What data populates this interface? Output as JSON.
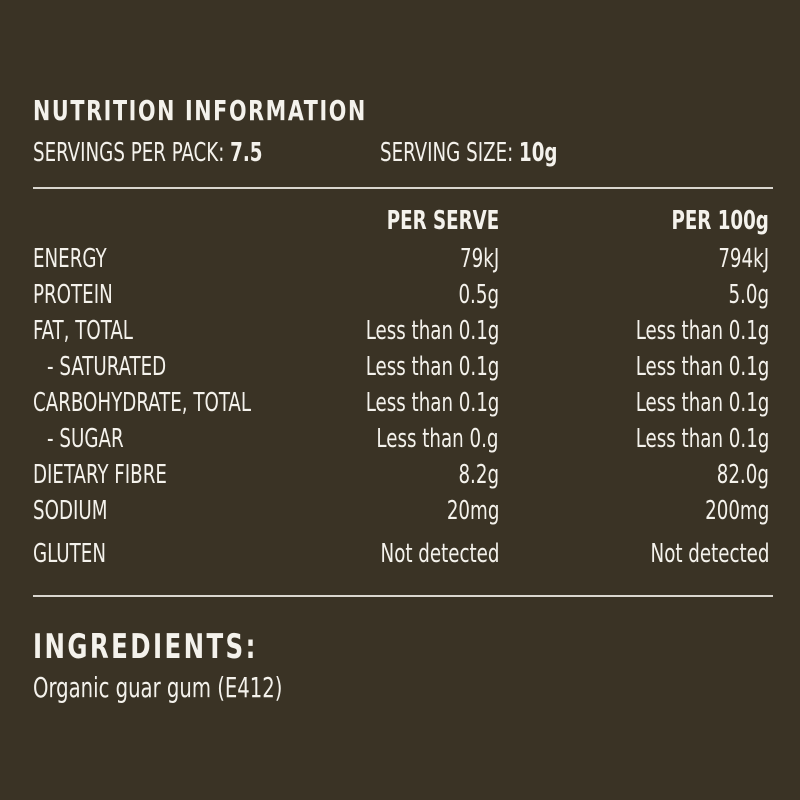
{
  "colors": {
    "background": "#3a3325",
    "text": "#f4f2ec",
    "rule": "#d9d6cf"
  },
  "panel": {
    "title": "NUTRITION INFORMATION",
    "servings_per_pack_label": "SERVINGS PER PACK:",
    "servings_per_pack_value": "7.5",
    "serving_size_label": "SERVING SIZE:",
    "serving_size_value": "10g"
  },
  "table": {
    "headers": {
      "nutrient": "",
      "per_serve": "PER SERVE",
      "per_100g": "PER 100g"
    },
    "rows": [
      {
        "nutrient": "ENERGY",
        "per_serve": "79kJ",
        "per_100g": "794kJ"
      },
      {
        "nutrient": "PROTEIN",
        "per_serve": "0.5g",
        "per_100g": "5.0g"
      },
      {
        "nutrient": "FAT, TOTAL",
        "per_serve": "Less than 0.1g",
        "per_100g": "Less than 0.1g"
      },
      {
        "nutrient": "- SATURATED",
        "per_serve": "Less than 0.1g",
        "per_100g": "Less than 0.1g"
      },
      {
        "nutrient": "CARBOHYDRATE, TOTAL",
        "per_serve": "Less than 0.1g",
        "per_100g": "Less than 0.1g"
      },
      {
        "nutrient": "- SUGAR",
        "per_serve": "Less than 0.g",
        "per_100g": "Less than 0.1g"
      },
      {
        "nutrient": "DIETARY FIBRE",
        "per_serve": "8.2g",
        "per_100g": "82.0g"
      },
      {
        "nutrient": "SODIUM",
        "per_serve": "20mg",
        "per_100g": "200mg"
      },
      {
        "nutrient": "GLUTEN",
        "per_serve": "Not detected",
        "per_100g": "Not detected"
      }
    ]
  },
  "ingredients": {
    "title": "INGREDIENTS:",
    "text": "Organic guar gum (E412)"
  }
}
